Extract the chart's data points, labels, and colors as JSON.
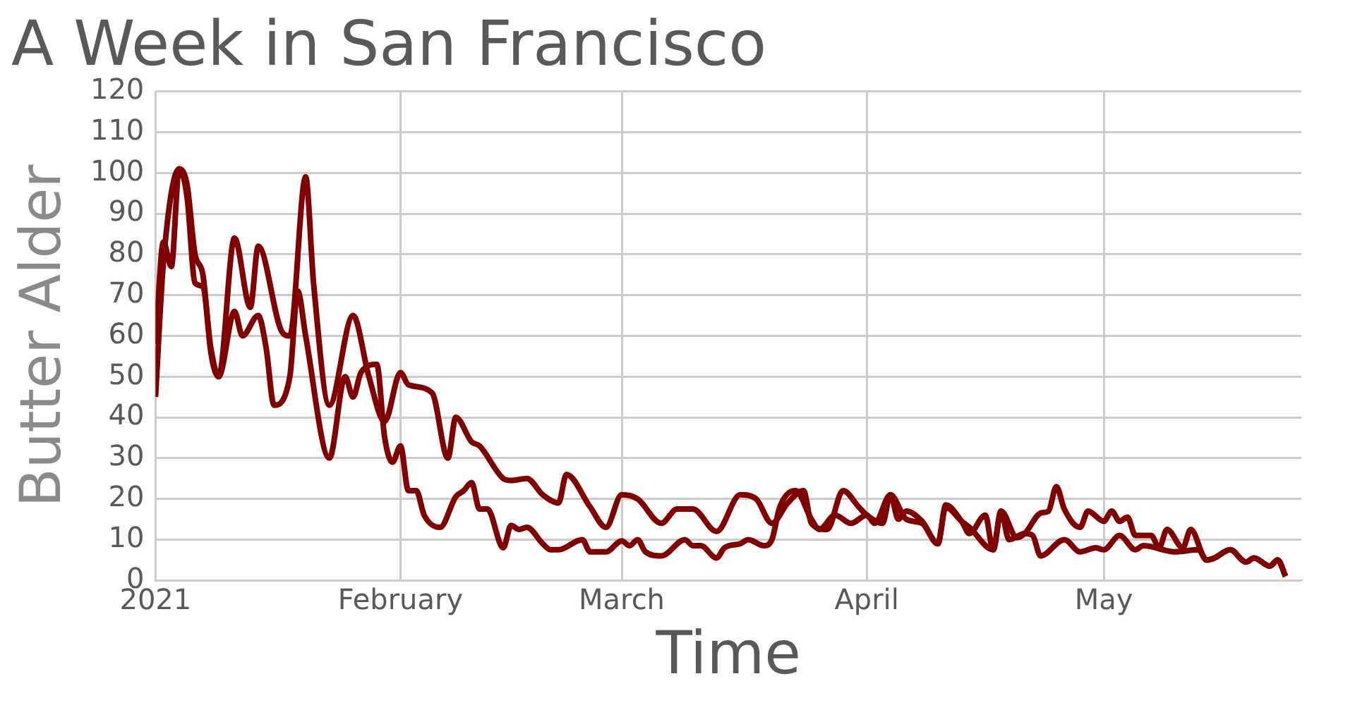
{
  "chart_data": {
    "type": "line",
    "title": "A Week in San Francisco",
    "xlabel": "Time",
    "ylabel": "Butter Alder",
    "xlim": [
      "2021-01-01",
      "2021-05-26"
    ],
    "xticks": [
      {
        "value": "2021-01-01",
        "label": "2021"
      },
      {
        "value": "2021-02-01",
        "label": "February"
      },
      {
        "value": "2021-03-01",
        "label": "March"
      },
      {
        "value": "2021-04-01",
        "label": "April"
      },
      {
        "value": "2021-05-01",
        "label": "May"
      }
    ],
    "ylim": [
      0,
      120
    ],
    "yticks": [
      0,
      10,
      20,
      30,
      40,
      50,
      60,
      70,
      80,
      90,
      100,
      110,
      120
    ],
    "grid": true,
    "legend": false,
    "marker": "none",
    "line_style": "solid",
    "series": [
      {
        "color": "#800000",
        "x": [
          "2021-01-01",
          "2021-01-02",
          "2021-01-03",
          "2021-01-04",
          "2021-01-05",
          "2021-01-06",
          "2021-01-07",
          "2021-01-08",
          "2021-01-09",
          "2021-01-11",
          "2021-01-13",
          "2021-01-14",
          "2021-01-17",
          "2021-01-18",
          "2021-01-20",
          "2021-01-21",
          "2021-01-23",
          "2021-01-26",
          "2021-01-28",
          "2021-01-30",
          "2021-02-01",
          "2021-02-02",
          "2021-02-05",
          "2021-02-07",
          "2021-02-08",
          "2021-02-10",
          "2021-02-11",
          "2021-02-14",
          "2021-02-15",
          "2021-02-17",
          "2021-02-19",
          "2021-02-21",
          "2021-02-22",
          "2021-02-25",
          "2021-02-27",
          "2021-03-01",
          "2021-03-03",
          "2021-03-06",
          "2021-03-08",
          "2021-03-10",
          "2021-03-13",
          "2021-03-16",
          "2021-03-18",
          "2021-03-20",
          "2021-03-22",
          "2021-03-24",
          "2021-03-25",
          "2021-03-27",
          "2021-03-29",
          "2021-03-31",
          "2021-04-01",
          "2021-04-03",
          "2021-04-04",
          "2021-04-06",
          "2021-04-08",
          "2021-04-10",
          "2021-04-11",
          "2021-04-13",
          "2021-04-14",
          "2021-04-17",
          "2021-04-18",
          "2021-04-20",
          "2021-04-21",
          "2021-04-23",
          "2021-04-24",
          "2021-04-25",
          "2021-04-26",
          "2021-04-28",
          "2021-04-29",
          "2021-05-01",
          "2021-05-02",
          "2021-05-03",
          "2021-05-04",
          "2021-05-05",
          "2021-05-07",
          "2021-05-08",
          "2021-05-09",
          "2021-05-11",
          "2021-05-12",
          "2021-05-14",
          "2021-05-15",
          "2021-05-17",
          "2021-05-19",
          "2021-05-20",
          "2021-05-22",
          "2021-05-23",
          "2021-05-24"
        ],
        "values": [
          58,
          83,
          77,
          101,
          94,
          73,
          72,
          57,
          50,
          84,
          67,
          82,
          61,
          60,
          99,
          73,
          43,
          65,
          50,
          39,
          51,
          48,
          46,
          30,
          40,
          34,
          33,
          25,
          24.5,
          25,
          21,
          19,
          26,
          18,
          13,
          21,
          20,
          14,
          17.5,
          17.5,
          12,
          21,
          20,
          14,
          19,
          22,
          14,
          12.5,
          22,
          18,
          16,
          14,
          21,
          15,
          14,
          9,
          18,
          14.5,
          13,
          7.5,
          17,
          10.5,
          11.5,
          16.5,
          17,
          23,
          17.5,
          13,
          17,
          14.5,
          17,
          14.5,
          15.5,
          11,
          11,
          8,
          12.5,
          8,
          12.5,
          5,
          5.5,
          7.5,
          4.5,
          5.5,
          3.5,
          5,
          1
        ]
      },
      {
        "color": "#800000",
        "x": [
          "2021-01-01",
          "2021-01-02",
          "2021-01-04",
          "2021-01-05",
          "2021-01-06",
          "2021-01-07",
          "2021-01-08",
          "2021-01-09",
          "2021-01-11",
          "2021-01-12",
          "2021-01-14",
          "2021-01-15",
          "2021-01-16",
          "2021-01-18",
          "2021-01-19",
          "2021-01-20",
          "2021-01-23",
          "2021-01-25",
          "2021-01-26",
          "2021-01-27",
          "2021-01-29",
          "2021-01-30",
          "2021-01-31",
          "2021-02-01",
          "2021-02-02",
          "2021-02-03",
          "2021-02-04",
          "2021-02-06",
          "2021-02-08",
          "2021-02-09",
          "2021-02-10",
          "2021-02-11",
          "2021-02-12",
          "2021-02-14",
          "2021-02-15",
          "2021-02-16",
          "2021-02-17",
          "2021-02-19",
          "2021-02-20",
          "2021-02-21",
          "2021-02-24",
          "2021-02-25",
          "2021-02-27",
          "2021-03-01",
          "2021-03-02",
          "2021-03-03",
          "2021-03-04",
          "2021-03-06",
          "2021-03-09",
          "2021-03-10",
          "2021-03-11",
          "2021-03-13",
          "2021-03-14",
          "2021-03-16",
          "2021-03-17",
          "2021-03-19",
          "2021-03-20",
          "2021-03-21",
          "2021-03-23",
          "2021-03-25",
          "2021-03-26",
          "2021-03-28",
          "2021-03-30",
          "2021-04-01",
          "2021-04-02",
          "2021-04-04",
          "2021-04-05",
          "2021-04-06",
          "2021-04-08",
          "2021-04-10",
          "2021-04-11",
          "2021-04-13",
          "2021-04-14",
          "2021-04-16",
          "2021-04-17",
          "2021-04-18",
          "2021-04-19",
          "2021-04-21",
          "2021-04-22",
          "2021-04-23",
          "2021-04-26",
          "2021-04-28",
          "2021-04-30",
          "2021-05-01",
          "2021-05-03",
          "2021-05-05",
          "2021-05-06",
          "2021-05-10",
          "2021-05-13",
          "2021-05-14",
          "2021-05-15",
          "2021-05-17",
          "2021-05-19",
          "2021-05-20",
          "2021-05-22",
          "2021-05-23",
          "2021-05-24"
        ],
        "values": [
          45,
          78,
          101,
          97,
          80,
          75,
          56,
          50,
          66,
          60,
          65,
          57,
          43,
          50,
          71,
          60,
          30,
          50,
          45,
          51,
          53,
          35,
          29,
          33,
          22,
          22,
          16,
          13,
          20.5,
          22,
          24,
          17.5,
          17.5,
          8,
          13.5,
          12.5,
          13,
          9,
          7.5,
          7.5,
          10,
          7,
          7,
          9.7,
          8.5,
          10,
          7,
          6,
          10,
          8.5,
          8.5,
          5.5,
          8,
          9,
          10,
          8.5,
          10,
          18,
          22,
          15,
          12.5,
          16,
          14,
          16,
          14,
          21,
          15,
          17,
          14.5,
          9,
          18.5,
          14.5,
          11.5,
          16,
          7.5,
          17,
          10,
          11.5,
          11,
          6,
          10,
          7,
          8,
          7.5,
          11,
          7.5,
          8.5,
          7,
          7.5,
          5,
          5.5,
          7.5,
          4.5,
          5.5,
          3.5,
          5,
          1
        ]
      }
    ]
  }
}
